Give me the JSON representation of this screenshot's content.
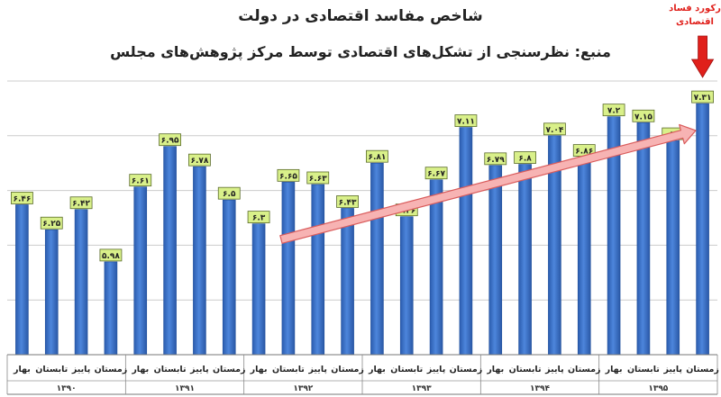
{
  "chart_data": {
    "type": "bar",
    "title": "شاخص مفاسد اقتصادی در دولت",
    "subtitle": "منبع: نظرسنجی از تشکل‌های اقتصادی توسط مرکز پژوهش‌های مجلس",
    "annotation": "رکورد فساد اقتصادی",
    "categories": [
      {
        "season": "بهار",
        "year": "۱۳۹۰"
      },
      {
        "season": "تابستان",
        "year": "۱۳۹۰"
      },
      {
        "season": "پاییز",
        "year": "۱۳۹۰"
      },
      {
        "season": "زمستان",
        "year": "۱۳۹۰"
      },
      {
        "season": "بهار",
        "year": "۱۳۹۱"
      },
      {
        "season": "تابستان",
        "year": "۱۳۹۱"
      },
      {
        "season": "پاییز",
        "year": "۱۳۹۱"
      },
      {
        "season": "زمستان",
        "year": "۱۳۹۱"
      },
      {
        "season": "بهار",
        "year": "۱۳۹۲"
      },
      {
        "season": "تابستان",
        "year": "۱۳۹۲"
      },
      {
        "season": "پاییز",
        "year": "۱۳۹۲"
      },
      {
        "season": "زمستان",
        "year": "۱۳۹۲"
      },
      {
        "season": "بهار",
        "year": "۱۳۹۳"
      },
      {
        "season": "تابستان",
        "year": "۱۳۹۳"
      },
      {
        "season": "پاییز",
        "year": "۱۳۹۳"
      },
      {
        "season": "زمستان",
        "year": "۱۳۹۳"
      },
      {
        "season": "بهار",
        "year": "۱۳۹۴"
      },
      {
        "season": "تابستان",
        "year": "۱۳۹۴"
      },
      {
        "season": "پاییز",
        "year": "۱۳۹۴"
      },
      {
        "season": "زمستان",
        "year": "۱۳۹۴"
      },
      {
        "season": "بهار",
        "year": "۱۳۹۵"
      },
      {
        "season": "تابستان",
        "year": "۱۳۹۵"
      },
      {
        "season": "پاییز",
        "year": "۱۳۹۵"
      },
      {
        "season": "زمستان",
        "year": "۱۳۹۵"
      }
    ],
    "years": [
      "۱۳۹۰",
      "۱۳۹۱",
      "۱۳۹۲",
      "۱۳۹۳",
      "۱۳۹۴",
      "۱۳۹۵"
    ],
    "values": [
      6.46,
      6.25,
      6.42,
      5.98,
      6.61,
      6.95,
      6.78,
      6.5,
      6.3,
      6.65,
      6.63,
      6.43,
      6.81,
      6.36,
      6.67,
      7.11,
      6.79,
      6.8,
      7.04,
      6.86,
      7.2,
      7.15,
      7,
      7.31
    ],
    "value_labels": [
      "۶.۴۶",
      "۶.۲۵",
      "۶.۴۲",
      "۵.۹۸",
      "۶.۶۱",
      "۶.۹۵",
      "۶.۷۸",
      "۶.۵",
      "۶.۳",
      "۶.۶۵",
      "۶.۶۳",
      "۶.۴۳",
      "۶.۸۱",
      "۶.۳۶",
      "۶.۶۷",
      "۷.۱۱",
      "۶.۷۹",
      "۶.۸",
      "۷.۰۴",
      "۶.۸۶",
      "۷.۲",
      "۷.۱۵",
      "۷",
      "۷.۳۱"
    ],
    "ylim": [
      5.2,
      7.5
    ],
    "grid": true,
    "trend": {
      "from_index": 9,
      "to_index": 23
    },
    "colors": {
      "bar": "#3a6fc4",
      "bar_edge": "#1f4f9c",
      "label_bg": "#d9f08a",
      "arrow_fill": "#f7b3b3",
      "arrow_edge": "#d95b5b",
      "record_arrow": "#e0201b",
      "grid": "#cccccc"
    }
  }
}
